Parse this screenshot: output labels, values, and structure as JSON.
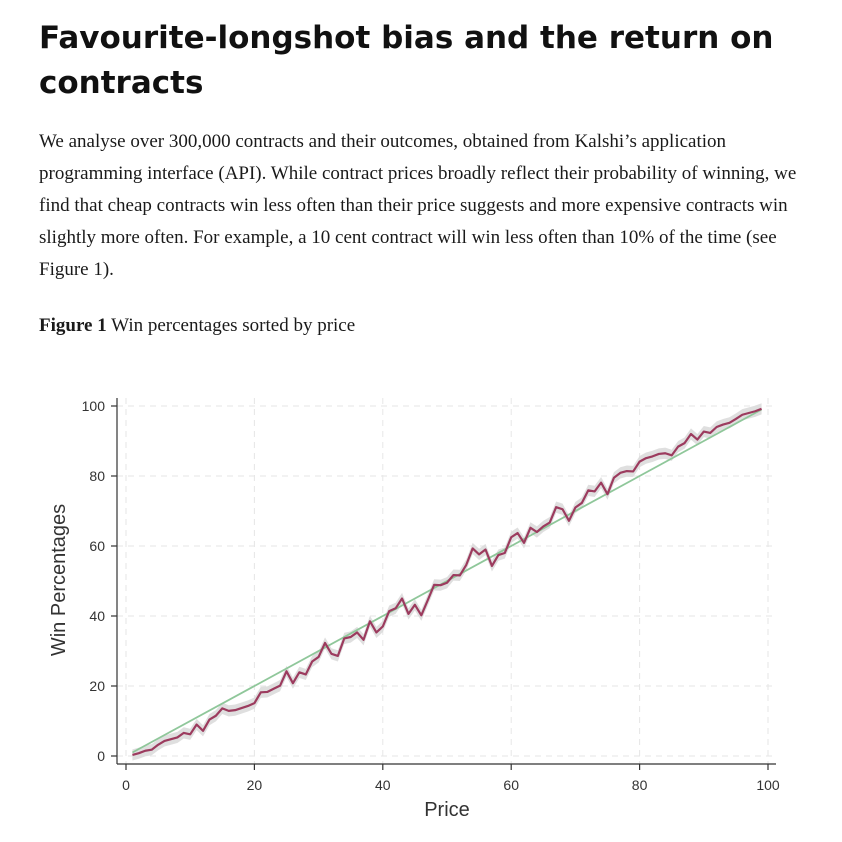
{
  "article": {
    "title": "Favourite-longshot bias and the return on contracts",
    "paragraph": "We analyse over 300,000 contracts and their outcomes, obtained from Kalshi’s application programming interface (API). While contract prices broadly reflect their probability of winning, we find that cheap contracts win less often than their price suggests and more expensive contracts win slightly more often. For example, a 10 cent contract will win less often than 10% of the time (see Figure 1).",
    "figure_label": "Figure 1",
    "figure_caption": "Win percentages sorted by price"
  },
  "colors": {
    "series_line": "#9c3b5e",
    "confidence_band": "#d9d9d9",
    "reference_line": "#8fc79a",
    "grid": "#e6e6e6"
  },
  "chart_data": {
    "type": "line",
    "title": "",
    "xlabel": "Price",
    "ylabel": "Win Percentages",
    "xlim": [
      0,
      100
    ],
    "ylim": [
      0,
      100
    ],
    "x_ticks": [
      0,
      20,
      40,
      60,
      80,
      100
    ],
    "y_ticks": [
      0,
      20,
      40,
      60,
      80,
      100
    ],
    "grid": true,
    "legend": "none",
    "series": [
      {
        "x": [
          1,
          2,
          3,
          4,
          5,
          6,
          7,
          8,
          9,
          10,
          11,
          12,
          13,
          14,
          15,
          16,
          17,
          18,
          19,
          20,
          21,
          22,
          23,
          24,
          25,
          26,
          27,
          28,
          29,
          30,
          31,
          32,
          33,
          34,
          35,
          36,
          37,
          38,
          39,
          40,
          41,
          42,
          43,
          44,
          45,
          46,
          47,
          48,
          49,
          50,
          51,
          52,
          53,
          54,
          55,
          56,
          57,
          58,
          59,
          60,
          61,
          62,
          63,
          64,
          65,
          66,
          67,
          68,
          69,
          70,
          71,
          72,
          73,
          74,
          75,
          76,
          77,
          78,
          79,
          80,
          81,
          82,
          83,
          84,
          85,
          86,
          87,
          88,
          89,
          90,
          91,
          92,
          93,
          94,
          95,
          96,
          97,
          98,
          99
        ],
        "values": [
          0.3,
          0.8,
          1.5,
          1.8,
          3.2,
          4.3,
          4.8,
          5.3,
          6.6,
          6.2,
          9.0,
          7.2,
          10.4,
          11.5,
          13.6,
          12.9,
          13.1,
          13.7,
          14.3,
          15.1,
          18.2,
          18.3,
          19.2,
          20.1,
          24.2,
          20.8,
          23.9,
          23.3,
          27.0,
          28.3,
          32.3,
          29.2,
          28.6,
          33.6,
          34.0,
          35.3,
          33.2,
          38.5,
          35.3,
          37.0,
          41.4,
          42.2,
          45.0,
          40.6,
          43.2,
          40.2,
          44.5,
          48.9,
          48.8,
          49.5,
          51.7,
          51.6,
          54.6,
          59.3,
          57.6,
          59.0,
          54.3,
          57.4,
          58.0,
          62.5,
          63.7,
          60.9,
          65.2,
          64.0,
          65.6,
          66.7,
          71.1,
          70.5,
          67.2,
          71.0,
          72.3,
          75.9,
          75.6,
          78.1,
          74.8,
          79.5,
          80.9,
          81.4,
          81.3,
          84.1,
          85.1,
          85.6,
          86.3,
          86.5,
          85.9,
          88.4,
          89.4,
          92.0,
          90.4,
          92.7,
          92.3,
          94.0,
          94.7,
          95.2,
          96.3,
          97.5,
          98.0,
          98.5,
          99.2
        ],
        "band_halfwidth": 1.6
      },
      {
        "x": [
          1,
          99
        ],
        "values": [
          1,
          99
        ],
        "style": "reference"
      }
    ]
  }
}
